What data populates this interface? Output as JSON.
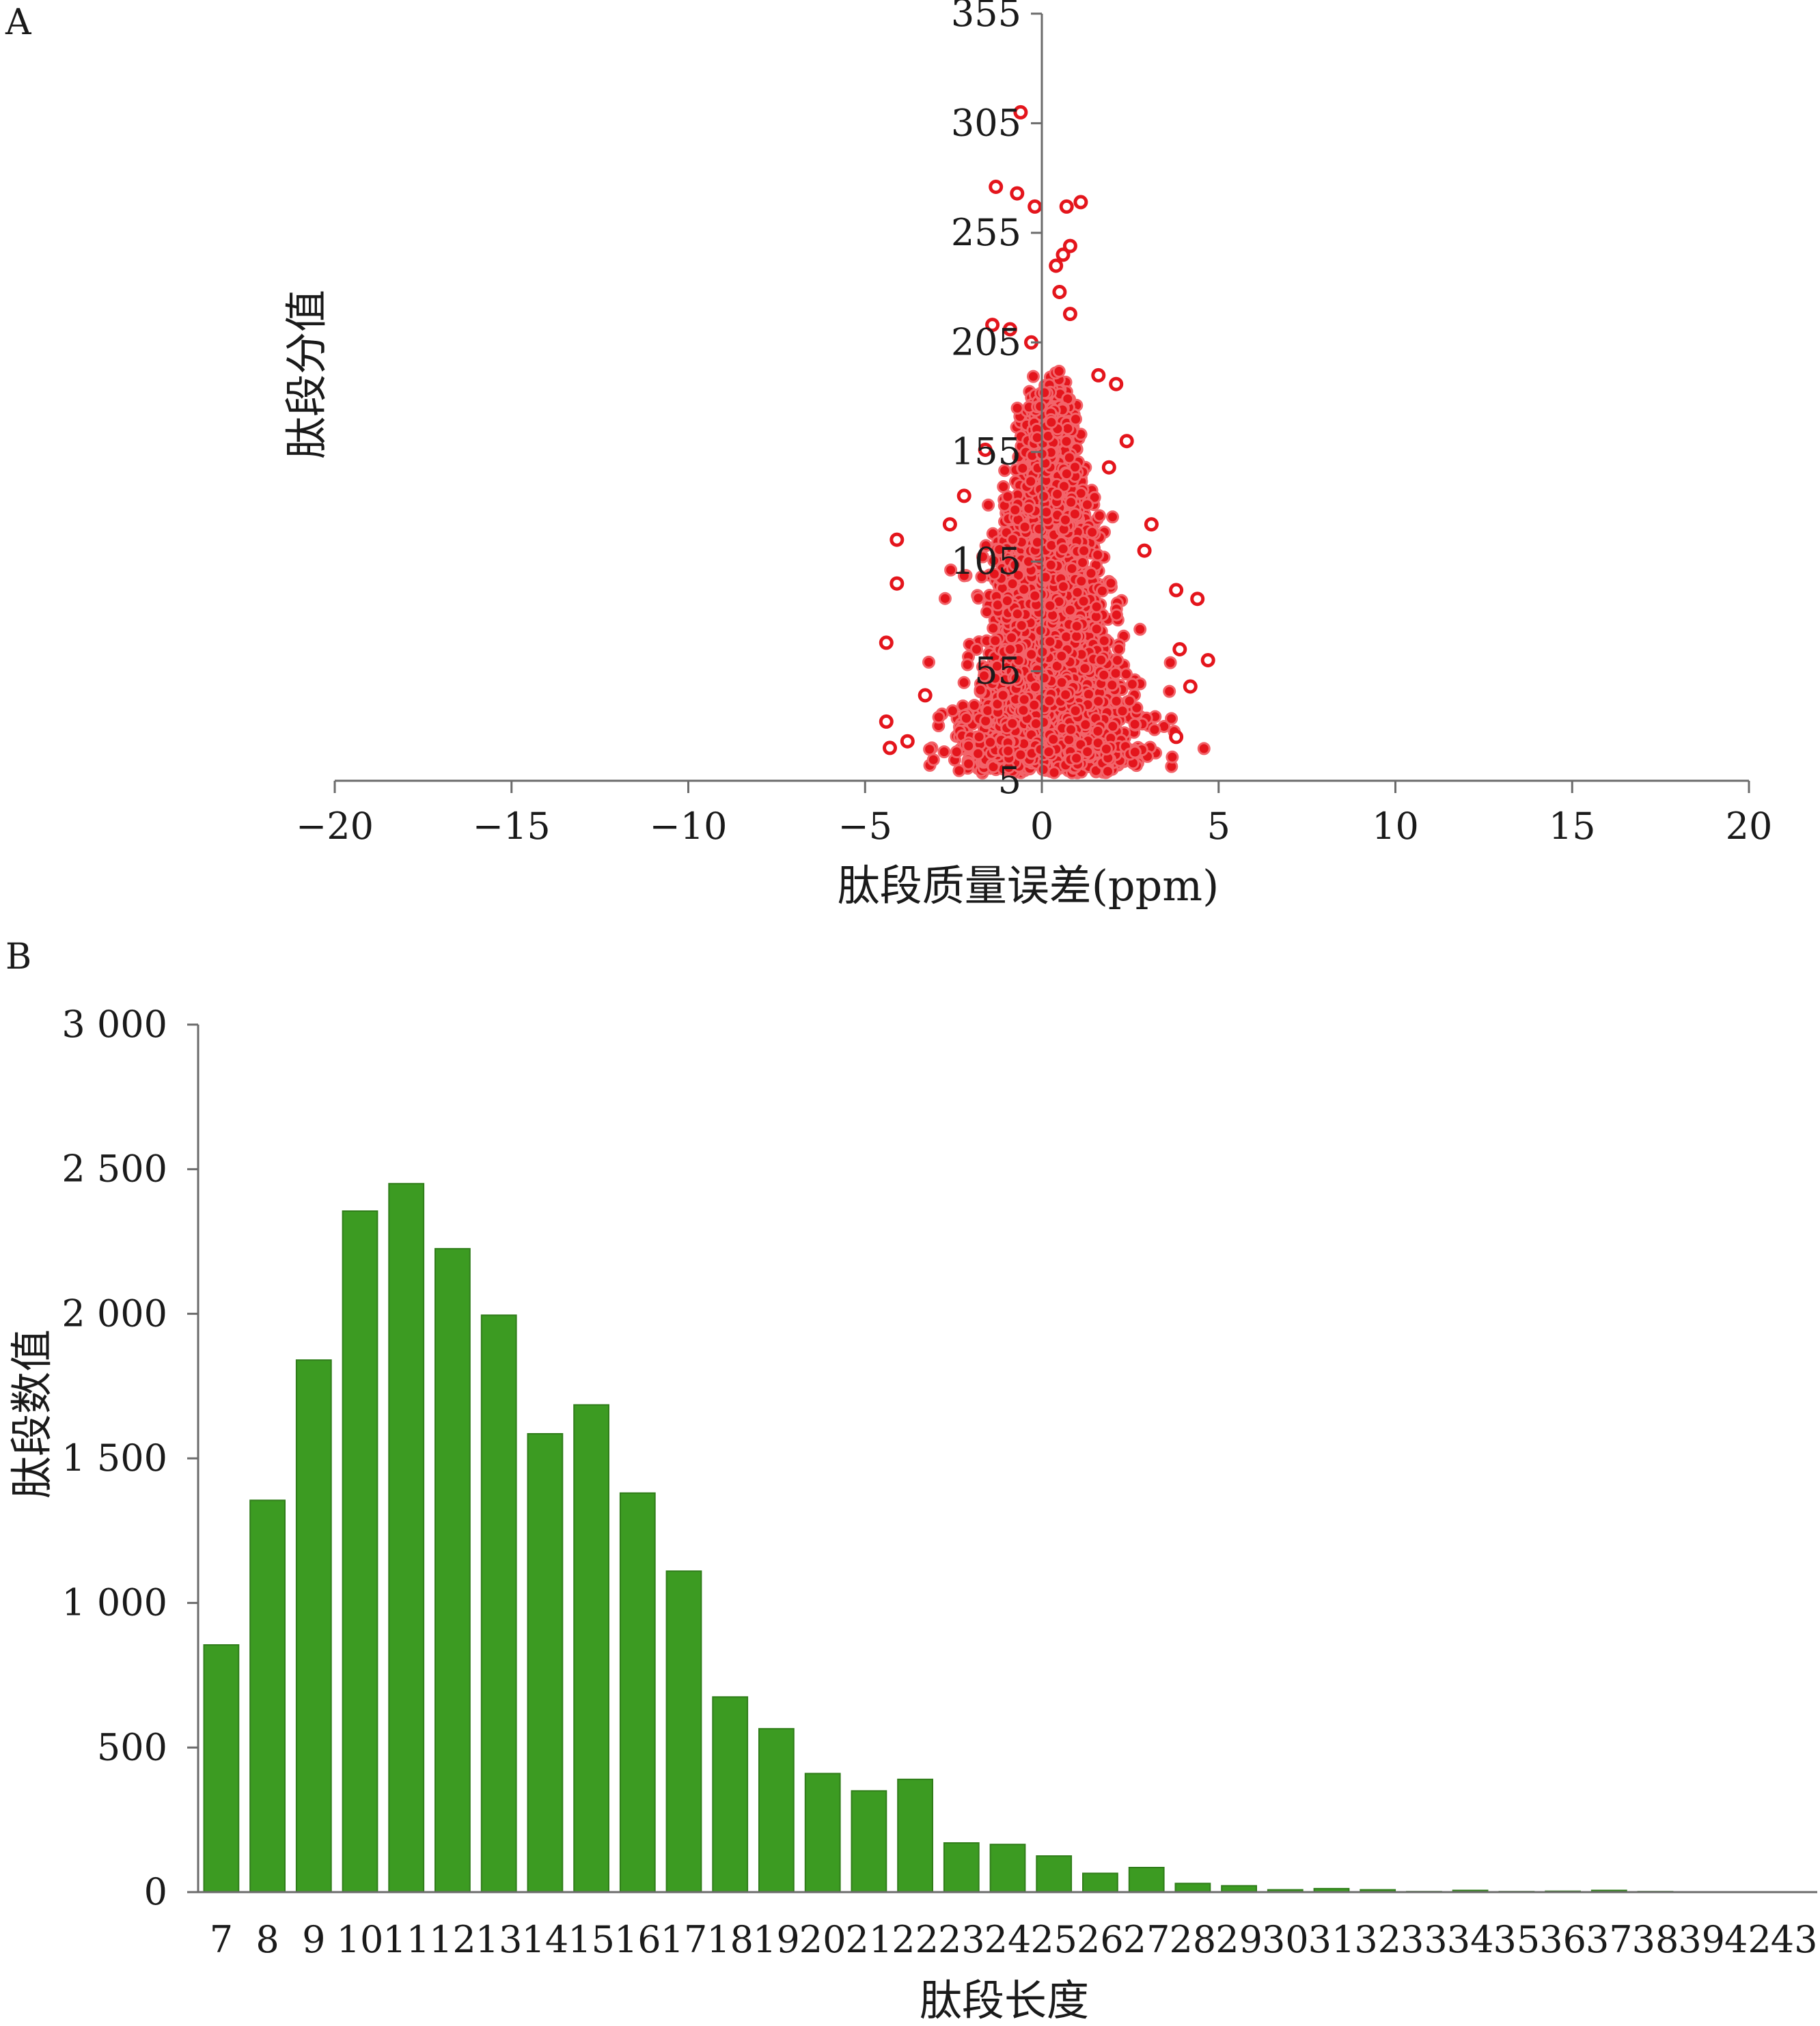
{
  "colors": {
    "scatter_point": "#e4151c",
    "scatter_point_edge": "#f2646a",
    "bar_fill": "#3c9b22",
    "bar_edge": "#2f7d19",
    "axis": "#6b6b6b",
    "text": "#1a1a1a",
    "background": "#ffffff"
  },
  "panels": {
    "a": {
      "label": "A"
    },
    "b": {
      "label": "B"
    }
  },
  "chart_data": [
    {
      "panel": "A",
      "type": "scatter",
      "xlabel": "肽段质量误差(ppm)",
      "ylabel": "肽段分值",
      "xlim": [
        -20,
        20
      ],
      "ylim": [
        5,
        355
      ],
      "x_ticks": [
        "−20",
        "−15",
        "−10",
        "−5",
        "0",
        "5",
        "10",
        "15",
        "20"
      ],
      "y_ticks": [
        "5",
        "55",
        "105",
        "155",
        "205",
        "255",
        "305",
        "355"
      ],
      "grid": false,
      "legend": "none",
      "marker": "hollow circle",
      "point_count_estimate": 20000,
      "distribution": {
        "description": "dense cluster centered near 0 ppm, spread about ±2 ppm, scores mostly 5–155, densest around 30–80",
        "x_center": 0.2,
        "x_spread_sd": 1.2,
        "x_range": [
          -4.3,
          4.7
        ],
        "y_range": [
          5,
          310
        ]
      },
      "points_outliers": [
        [
          -0.6,
          310
        ],
        [
          -1.3,
          276
        ],
        [
          -0.7,
          273
        ],
        [
          -0.2,
          267
        ],
        [
          0.7,
          267
        ],
        [
          1.1,
          269
        ],
        [
          0.8,
          249
        ],
        [
          0.6,
          245
        ],
        [
          0.4,
          240
        ],
        [
          0.5,
          228
        ],
        [
          -1.4,
          213
        ],
        [
          -0.9,
          211
        ],
        [
          0.8,
          218
        ],
        [
          -0.3,
          205
        ],
        [
          2.1,
          186
        ],
        [
          1.6,
          190
        ],
        [
          -4.1,
          115
        ],
        [
          -4.1,
          95
        ],
        [
          -4.4,
          68
        ],
        [
          -4.4,
          32
        ],
        [
          -4.3,
          20
        ],
        [
          -3.8,
          23
        ],
        [
          4.4,
          88
        ],
        [
          4.7,
          60
        ],
        [
          4.2,
          48
        ],
        [
          3.9,
          65
        ],
        [
          3.8,
          25
        ],
        [
          -2.2,
          135
        ],
        [
          2.4,
          160
        ],
        [
          3.1,
          122
        ],
        [
          2.9,
          110
        ],
        [
          -1.6,
          156
        ],
        [
          3.8,
          92
        ],
        [
          -3.3,
          44
        ],
        [
          -2.6,
          122
        ],
        [
          1.9,
          148
        ]
      ]
    },
    {
      "panel": "B",
      "type": "bar",
      "xlabel": "肽段长度",
      "ylabel": "肽段数值",
      "ylim": [
        0,
        3000
      ],
      "y_ticks": [
        "0",
        "500",
        "1 000",
        "1 500",
        "2 000",
        "2 500",
        "3 000"
      ],
      "grid": false,
      "legend": "none",
      "categories": [
        "7",
        "8",
        "9",
        "10",
        "11",
        "12",
        "13",
        "14",
        "15",
        "16",
        "17",
        "18",
        "19",
        "20",
        "21",
        "22",
        "23",
        "24",
        "25",
        "26",
        "27",
        "28",
        "29",
        "30",
        "31",
        "32",
        "33",
        "34",
        "35",
        "36",
        "37",
        "38",
        "39",
        "42",
        "43"
      ],
      "values": [
        855,
        1355,
        1840,
        2355,
        2450,
        2225,
        1995,
        1585,
        1685,
        1380,
        1110,
        675,
        565,
        410,
        350,
        390,
        170,
        165,
        125,
        65,
        85,
        30,
        22,
        8,
        12,
        8,
        2,
        6,
        2,
        3,
        6,
        2,
        1,
        1,
        1
      ]
    }
  ]
}
